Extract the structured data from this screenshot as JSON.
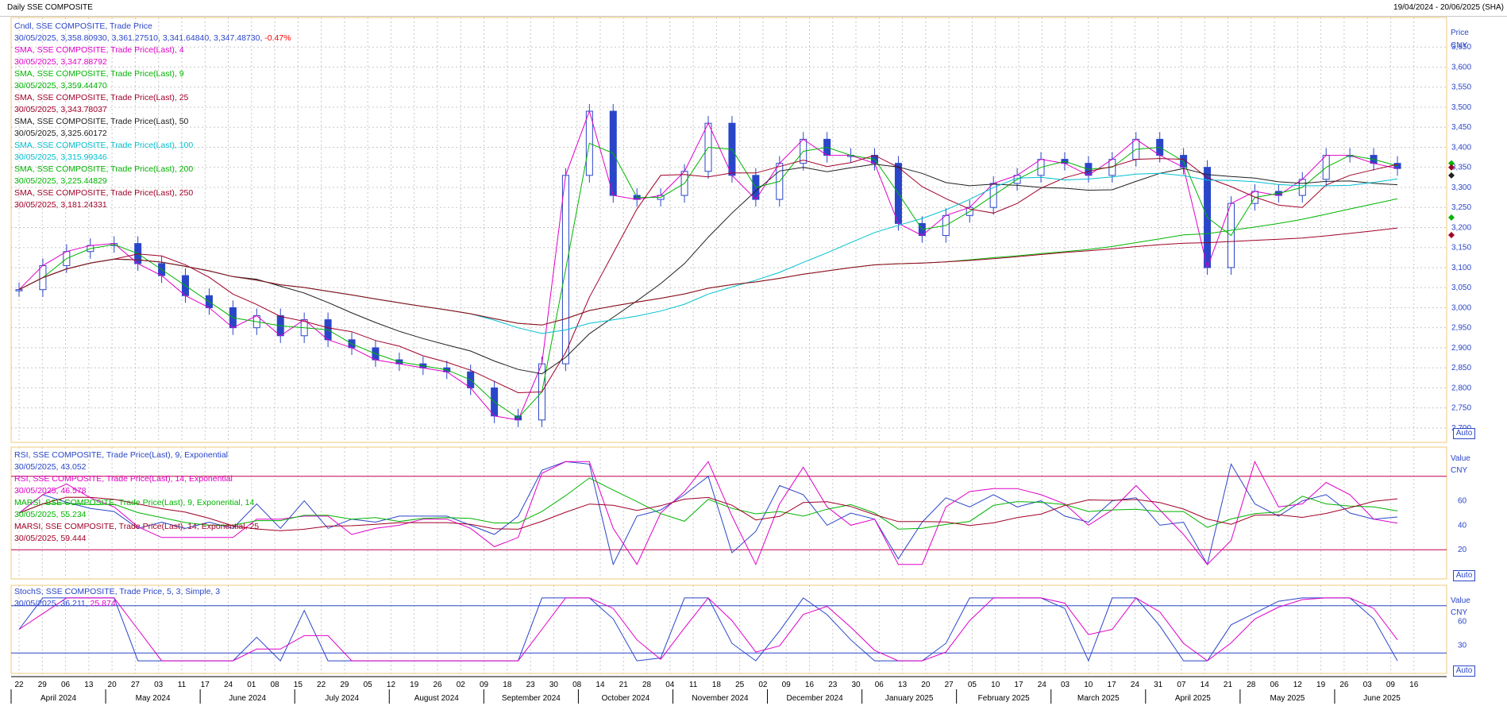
{
  "header": {
    "title": "Daily SSE COMPOSITE",
    "date_range": "19/04/2024 - 20/06/2025 (SHA)"
  },
  "price_panel": {
    "axis_title": "Price",
    "axis_unit": "CNY",
    "auto_label": "Auto",
    "legend": [
      {
        "label": "Cndl, SSE COMPOSITE, Trade Price",
        "color": "#2a46c8"
      },
      {
        "label": "30/05/2025, 3,358.80930, 3,361.27510, 3,341.64840, 3,347.48730,",
        "color": "#2a46c8",
        "extra": "-0.47%",
        "extra_color": "#ff0000"
      },
      {
        "label": "SMA, SSE COMPOSITE, Trade Price(Last),  4",
        "color": "#e000c8"
      },
      {
        "label": "30/05/2025, 3,347.88792",
        "color": "#e000c8"
      },
      {
        "label": "SMA, SSE COMPOSITE, Trade Price(Last),  9",
        "color": "#00b400"
      },
      {
        "label": "30/05/2025, 3,359.44470",
        "color": "#00b400"
      },
      {
        "label": "SMA, SSE COMPOSITE, Trade Price(Last),  25",
        "color": "#a00028"
      },
      {
        "label": "30/05/2025, 3,343.78037",
        "color": "#a00028"
      },
      {
        "label": "SMA, SSE COMPOSITE, Trade Price(Last),  50",
        "color": "#202020"
      },
      {
        "label": "30/05/2025, 3,325.60172",
        "color": "#202020"
      },
      {
        "label": "SMA, SSE COMPOSITE, Trade Price(Last),  100",
        "color": "#00c0d0"
      },
      {
        "label": "30/05/2025, 3,315.99346",
        "color": "#00c0d0"
      },
      {
        "label": "SMA, SSE COMPOSITE, Trade Price(Last),  200",
        "color": "#00b400"
      },
      {
        "label": "30/05/2025, 3,225.44829",
        "color": "#00b400"
      },
      {
        "label": "SMA, SSE COMPOSITE, Trade Price(Last),  250",
        "color": "#a00028"
      },
      {
        "label": "30/05/2025, 3,181.24331",
        "color": "#a00028"
      }
    ]
  },
  "rsi_panel": {
    "axis_title": "Value",
    "axis_unit": "CNY",
    "auto_label": "Auto",
    "legend": [
      {
        "label": "RSI, SSE COMPOSITE, Trade Price(Last),  9, Exponential",
        "color": "#2a46c8"
      },
      {
        "label": "30/05/2025, 43.052",
        "color": "#2a46c8"
      },
      {
        "label": "RSI, SSE COMPOSITE, Trade Price(Last),  14, Exponential",
        "color": "#e000c8"
      },
      {
        "label": "30/05/2025, 46.578",
        "color": "#e000c8"
      },
      {
        "label": "MARSI, SSE COMPOSITE, Trade Price(Last),  9, Exponential, 14",
        "color": "#00b400"
      },
      {
        "label": "30/05/2025, 55.234",
        "color": "#00b400"
      },
      {
        "label": "MARSI, SSE COMPOSITE, Trade Price(Last),  14, Exponential, 25",
        "color": "#a00028"
      },
      {
        "label": "30/05/2025, 59.444",
        "color": "#a00028"
      }
    ]
  },
  "stoch_panel": {
    "axis_title": "Value",
    "axis_unit": "CNY",
    "auto_label": "Auto",
    "legend": [
      {
        "label": "StochS, SSE COMPOSITE, Trade Price,  5, 3, Simple, 3",
        "color": "#2a46c8"
      },
      {
        "label": "30/05/2025, 36.211,",
        "color": "#2a46c8",
        "extra": "25.874",
        "extra_color": "#e000c8"
      }
    ]
  },
  "chart_data": [
    {
      "type": "candlestick",
      "title": "Daily SSE COMPOSITE",
      "ylabel": "Price CNY",
      "ylim": [
        2680,
        3700
      ],
      "y_ticks": [
        2700,
        2750,
        2800,
        2850,
        2900,
        2950,
        3000,
        3050,
        3100,
        3150,
        3200,
        3250,
        3300,
        3350,
        3400,
        3450,
        3500,
        3550,
        3600,
        3650
      ],
      "y_tick_labels": [
        "2,700",
        "2,750",
        "2,800",
        "2,850",
        "2,900",
        "2,950",
        "3,000",
        "3,050",
        "3,100",
        "3,150",
        "3,200",
        "3,250",
        "3,300",
        "3,350",
        "3,400",
        "3,450",
        "3,500",
        "3,550",
        "3,600",
        "3,650"
      ],
      "x_tick_labels": [
        "22",
        "29",
        "06",
        "13",
        "20",
        "27",
        "03",
        "11",
        "17",
        "24",
        "01",
        "08",
        "15",
        "22",
        "29",
        "05",
        "12",
        "19",
        "26",
        "02",
        "09",
        "18",
        "23",
        "30",
        "08",
        "14",
        "21",
        "28",
        "04",
        "11",
        "18",
        "25",
        "02",
        "09",
        "16",
        "23",
        "30",
        "06",
        "13",
        "20",
        "27",
        "05",
        "10",
        "17",
        "24",
        "03",
        "10",
        "17",
        "24",
        "31",
        "07",
        "14",
        "21",
        "28",
        "06",
        "12",
        "19",
        "26",
        "03",
        "09",
        "16"
      ],
      "month_labels": [
        "April 2024",
        "May 2024",
        "June 2024",
        "July 2024",
        "August 2024",
        "September 2024",
        "October 2024",
        "November 2024",
        "December 2024",
        "January 2025",
        "February 2025",
        "March 2025",
        "April 2025",
        "May 2025",
        "June 2025"
      ],
      "series_points": [
        {
          "date": "22/04/2024",
          "close": 3045
        },
        {
          "date": "29/04/2024",
          "close": 3105
        },
        {
          "date": "06/05/2024",
          "close": 3140
        },
        {
          "date": "13/05/2024",
          "close": 3155
        },
        {
          "date": "20/05/2024",
          "close": 3160
        },
        {
          "date": "27/05/2024",
          "close": 3110
        },
        {
          "date": "03/06/2024",
          "close": 3080
        },
        {
          "date": "11/06/2024",
          "close": 3030
        },
        {
          "date": "17/06/2024",
          "close": 3000
        },
        {
          "date": "24/06/2024",
          "close": 2950
        },
        {
          "date": "01/07/2024",
          "close": 2980
        },
        {
          "date": "08/07/2024",
          "close": 2930
        },
        {
          "date": "15/07/2024",
          "close": 2970
        },
        {
          "date": "22/07/2024",
          "close": 2920
        },
        {
          "date": "29/07/2024",
          "close": 2900
        },
        {
          "date": "05/08/2024",
          "close": 2870
        },
        {
          "date": "12/08/2024",
          "close": 2860
        },
        {
          "date": "19/08/2024",
          "close": 2850
        },
        {
          "date": "26/08/2024",
          "close": 2840
        },
        {
          "date": "02/09/2024",
          "close": 2800
        },
        {
          "date": "09/09/2024",
          "close": 2730
        },
        {
          "date": "18/09/2024",
          "close": 2720
        },
        {
          "date": "23/09/2024",
          "close": 2860
        },
        {
          "date": "30/09/2024",
          "close": 3330
        },
        {
          "date": "08/10/2024",
          "close": 3490
        },
        {
          "date": "14/10/2024",
          "close": 3280
        },
        {
          "date": "21/10/2024",
          "close": 3270
        },
        {
          "date": "28/10/2024",
          "close": 3280
        },
        {
          "date": "04/11/2024",
          "close": 3340
        },
        {
          "date": "11/11/2024",
          "close": 3460
        },
        {
          "date": "18/11/2024",
          "close": 3330
        },
        {
          "date": "25/11/2024",
          "close": 3270
        },
        {
          "date": "02/12/2024",
          "close": 3360
        },
        {
          "date": "09/12/2024",
          "close": 3420
        },
        {
          "date": "16/12/2024",
          "close": 3380
        },
        {
          "date": "23/12/2024",
          "close": 3380
        },
        {
          "date": "30/12/2024",
          "close": 3360
        },
        {
          "date": "06/01/2025",
          "close": 3210
        },
        {
          "date": "13/01/2025",
          "close": 3180
        },
        {
          "date": "20/01/2025",
          "close": 3230
        },
        {
          "date": "27/01/2025",
          "close": 3250
        },
        {
          "date": "05/02/2025",
          "close": 3310
        },
        {
          "date": "10/02/2025",
          "close": 3330
        },
        {
          "date": "17/02/2025",
          "close": 3370
        },
        {
          "date": "24/02/2025",
          "close": 3360
        },
        {
          "date": "03/03/2025",
          "close": 3330
        },
        {
          "date": "10/03/2025",
          "close": 3370
        },
        {
          "date": "17/03/2025",
          "close": 3420
        },
        {
          "date": "24/03/2025",
          "close": 3380
        },
        {
          "date": "31/03/2025",
          "close": 3350
        },
        {
          "date": "07/04/2025",
          "close": 3100
        },
        {
          "date": "14/04/2025",
          "close": 3260
        },
        {
          "date": "21/04/2025",
          "close": 3290
        },
        {
          "date": "28/04/2025",
          "close": 3280
        },
        {
          "date": "06/05/2025",
          "close": 3320
        },
        {
          "date": "12/05/2025",
          "close": 3380
        },
        {
          "date": "19/05/2025",
          "close": 3380
        },
        {
          "date": "26/05/2025",
          "close": 3360
        },
        {
          "date": "30/05/2025",
          "close": 3347
        }
      ]
    },
    {
      "type": "line",
      "title": "RSI",
      "ylim": [
        0,
        100
      ],
      "y_ticks": [
        20,
        40,
        60
      ],
      "reference_lines": [
        20,
        80
      ]
    },
    {
      "type": "line",
      "title": "StochS",
      "ylim": [
        0,
        100
      ],
      "y_ticks": [
        30,
        60
      ],
      "reference_lines": [
        20,
        80
      ]
    }
  ]
}
